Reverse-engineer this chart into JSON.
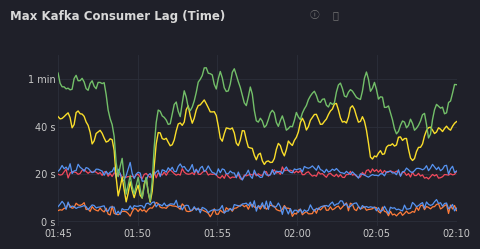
{
  "title": "Max Kafka Consumer Lag (Time)",
  "bg_color": "#1f2029",
  "plot_bg_color": "#1f2029",
  "grid_color": "#2c2f3a",
  "text_color": "#c8c8c8",
  "title_color": "#d8d8d8",
  "x_ticks": [
    "01:45",
    "01:50",
    "01:55",
    "02:00",
    "02:05",
    "02:10"
  ],
  "y_ticks": [
    0,
    20,
    40,
    60
  ],
  "y_tick_labels": [
    "0 s",
    "20 s",
    "40 s",
    "1 min"
  ],
  "ylim": [
    -2,
    70
  ],
  "n_points": 200,
  "line_colors": {
    "green": "#73bf69",
    "yellow": "#fade2a",
    "red": "#f2495c",
    "blue_mid": "#5794f2",
    "orange": "#ff7c3a",
    "blue_low": "#5794f2"
  }
}
